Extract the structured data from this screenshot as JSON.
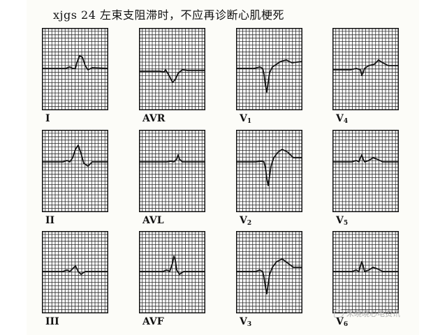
{
  "title": "xjgs 24   左束支阻滞时，不应再诊断心肌梗死",
  "leads": [
    {
      "id": "I",
      "label": "I",
      "sub": ""
    },
    {
      "id": "AVR",
      "label": "AVR",
      "sub": ""
    },
    {
      "id": "V1",
      "label": "V",
      "sub": "1"
    },
    {
      "id": "V4",
      "label": "V",
      "sub": "4"
    },
    {
      "id": "II",
      "label": "II",
      "sub": ""
    },
    {
      "id": "AVL",
      "label": "AVL",
      "sub": ""
    },
    {
      "id": "V2",
      "label": "V",
      "sub": "2"
    },
    {
      "id": "V5",
      "label": "V",
      "sub": "5"
    },
    {
      "id": "III",
      "label": "III",
      "sub": ""
    },
    {
      "id": "AVF",
      "label": "AVF",
      "sub": ""
    },
    {
      "id": "V3",
      "label": "V",
      "sub": "3"
    },
    {
      "id": "V6",
      "label": "V",
      "sub": "6"
    }
  ],
  "watermark": {
    "text": "宋晓晓心电资讯",
    "icon": "speech-bubble-icon"
  },
  "colors": {
    "grid": "#2a2a2a",
    "trace": "#111111",
    "paper": "#ffffff"
  }
}
